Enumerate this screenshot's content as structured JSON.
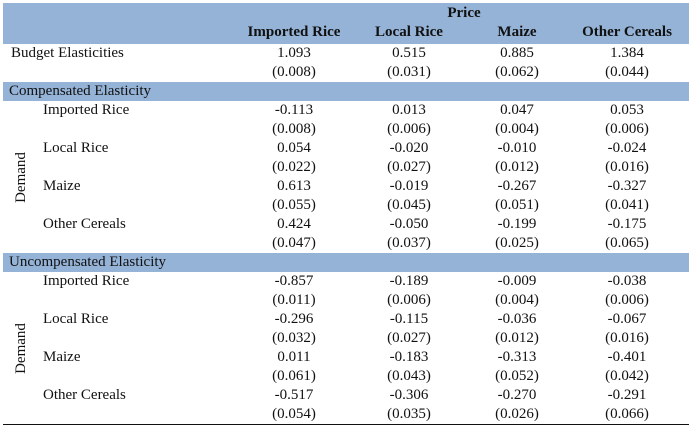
{
  "header": {
    "group": "Price",
    "columns": [
      "Imported Rice",
      "Local Rice",
      "Maize",
      "Other Cereals"
    ]
  },
  "budget": {
    "label": "Budget Elasticities",
    "values": [
      "1.093",
      "0.515",
      "0.885",
      "1.384"
    ],
    "se": [
      "(0.008)",
      "(0.031)",
      "(0.062)",
      "(0.044)"
    ]
  },
  "compensated": {
    "title": "Compensated Elasticity",
    "side_label": "Demand",
    "rows": [
      {
        "label": "Imported Rice",
        "values": [
          "-0.113",
          "0.013",
          "0.047",
          "0.053"
        ],
        "se": [
          "(0.008)",
          "(0.006)",
          "(0.004)",
          "(0.006)"
        ]
      },
      {
        "label": "Local Rice",
        "values": [
          "0.054",
          "-0.020",
          "-0.010",
          "-0.024"
        ],
        "se": [
          "(0.022)",
          "(0.027)",
          "(0.012)",
          "(0.016)"
        ]
      },
      {
        "label": "Maize",
        "values": [
          "0.613",
          "-0.019",
          "-0.267",
          "-0.327"
        ],
        "se": [
          "(0.055)",
          "(0.045)",
          "(0.051)",
          "(0.041)"
        ]
      },
      {
        "label": "Other Cereals",
        "values": [
          "0.424",
          "-0.050",
          "-0.199",
          "-0.175"
        ],
        "se": [
          "(0.047)",
          "(0.037)",
          "(0.025)",
          "(0.065)"
        ]
      }
    ]
  },
  "uncompensated": {
    "title": "Uncompensated Elasticity",
    "side_label": "Demand",
    "rows": [
      {
        "label": "Imported Rice",
        "values": [
          "-0.857",
          "-0.189",
          "-0.009",
          "-0.038"
        ],
        "se": [
          "(0.011)",
          "(0.006)",
          "(0.004)",
          "(0.006)"
        ]
      },
      {
        "label": "Local Rice",
        "values": [
          "-0.296",
          "-0.115",
          "-0.036",
          "-0.067"
        ],
        "se": [
          "(0.032)",
          "(0.027)",
          "(0.012)",
          "(0.016)"
        ]
      },
      {
        "label": "Maize",
        "values": [
          "0.011",
          "-0.183",
          "-0.313",
          "-0.401"
        ],
        "se": [
          "(0.061)",
          "(0.043)",
          "(0.052)",
          "(0.042)"
        ]
      },
      {
        "label": "Other Cereals",
        "values": [
          "-0.517",
          "-0.306",
          "-0.270",
          "-0.291"
        ],
        "se": [
          "(0.054)",
          "(0.035)",
          "(0.026)",
          "(0.066)"
        ]
      }
    ]
  },
  "colors": {
    "header_bg": "#95B3D7"
  }
}
